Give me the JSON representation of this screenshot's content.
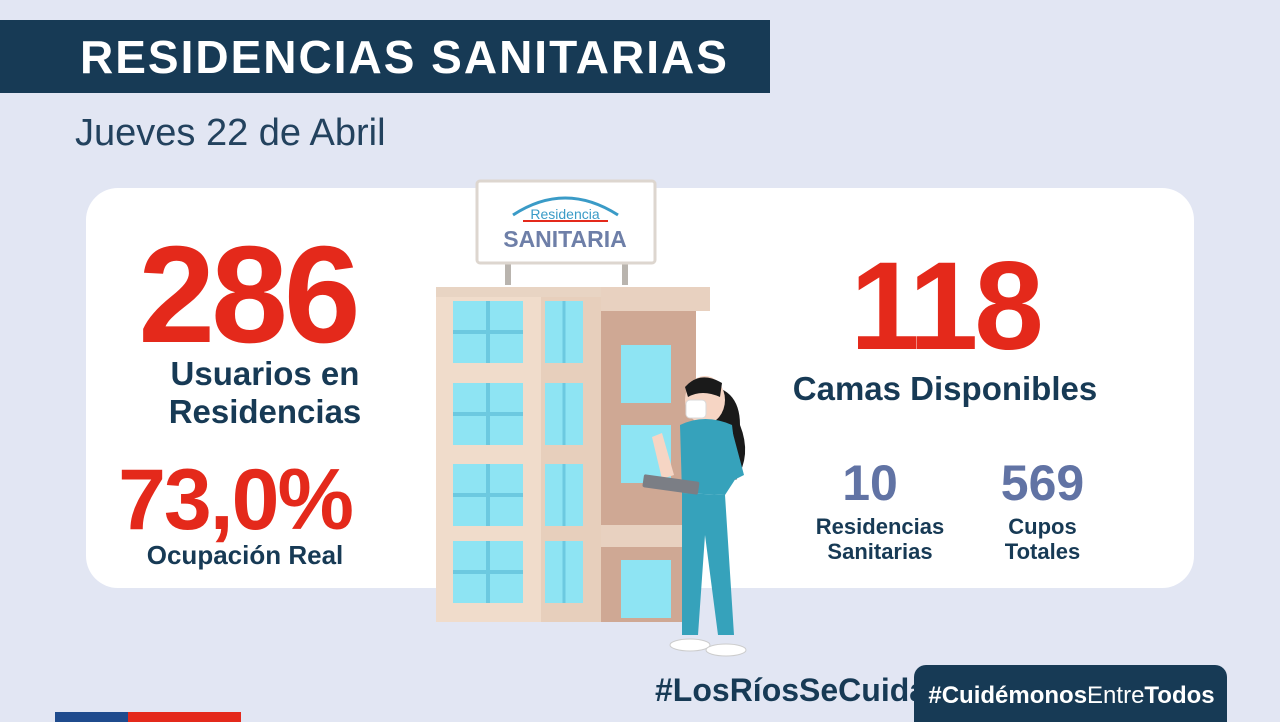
{
  "header": {
    "title": "RESIDENCIAS SANITARIAS",
    "date": "Jueves 22 de Abril"
  },
  "stats": {
    "users": {
      "value": "286",
      "label": "Usuarios en Residencias"
    },
    "occupancy": {
      "value": "73,0%",
      "label": "Ocupación Real"
    },
    "beds": {
      "value": "118",
      "label": "Camas Disponibles"
    },
    "residences": {
      "value": "10",
      "label": "Residencias Sanitarias"
    },
    "cupos": {
      "value": "569",
      "label": "Cupos Totales"
    }
  },
  "sign": {
    "line1": "Residencia",
    "line2": "SANITARIA"
  },
  "footer": {
    "hashtag_left": "#LosRíosSeCuida",
    "hashtag_right_a": "#Cuidémonos",
    "hashtag_right_b": "Entre",
    "hashtag_right_c": "Todos"
  },
  "colors": {
    "navy": "#173a55",
    "red": "#e4291b",
    "slate_blue": "#6173a4",
    "background": "#e2e6f3"
  }
}
